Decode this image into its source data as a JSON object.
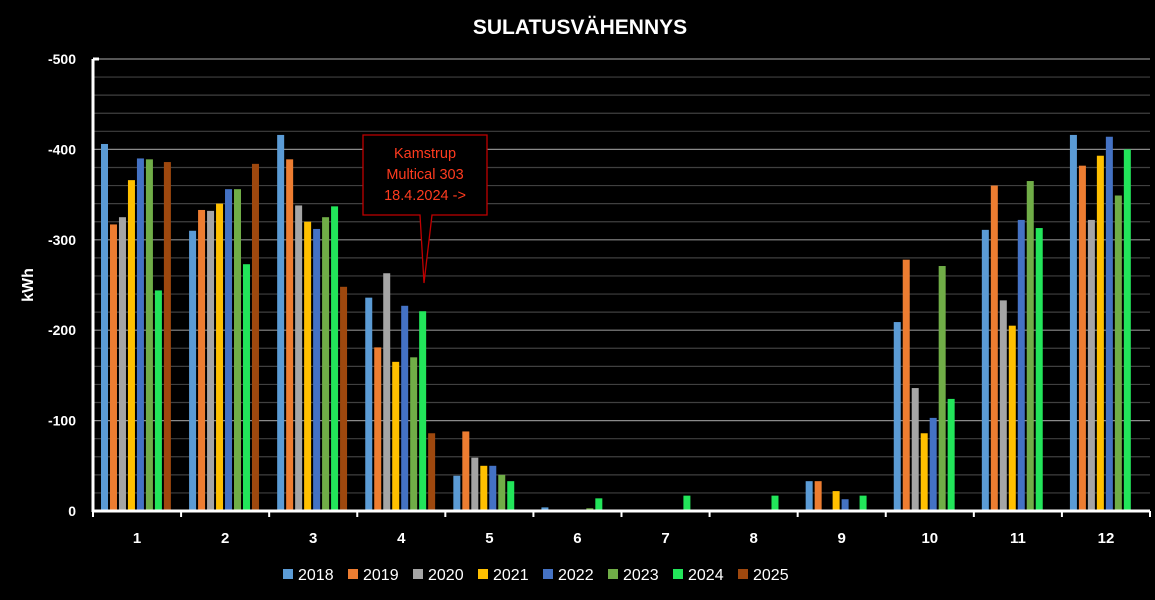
{
  "chart_data": {
    "type": "bar",
    "title": "SULATUSVÄHENNYS",
    "xlabel": "",
    "ylabel": "kWh",
    "ylim": [
      0,
      -500
    ],
    "yticks": [
      0,
      -100,
      -200,
      -300,
      -400,
      -500
    ],
    "ytick_labels": [
      "0",
      "-100",
      "-200",
      "-300",
      "-400",
      "-500"
    ],
    "minor_grid_step": 20,
    "grid": true,
    "legend_position": "bottom",
    "categories": [
      "1",
      "2",
      "3",
      "4",
      "5",
      "6",
      "7",
      "8",
      "9",
      "10",
      "11",
      "12"
    ],
    "series": [
      {
        "name": "2018",
        "color": "#5b9bd5",
        "values": [
          -406,
          -310,
          -416,
          -236,
          -39,
          -4,
          0,
          0,
          -33,
          -209,
          -311,
          -416
        ]
      },
      {
        "name": "2019",
        "color": "#ed7d31",
        "values": [
          -317,
          -333,
          -389,
          -181,
          -88,
          0,
          0,
          0,
          -33,
          -278,
          -360,
          -382
        ]
      },
      {
        "name": "2020",
        "color": "#a5a5a5",
        "values": [
          -325,
          -332,
          -338,
          -263,
          -59,
          0,
          0,
          0,
          0,
          -136,
          -233,
          -322
        ]
      },
      {
        "name": "2021",
        "color": "#ffc000",
        "values": [
          -366,
          -340,
          -320,
          -165,
          -50,
          0,
          0,
          0,
          -22,
          -86,
          -205,
          -393
        ]
      },
      {
        "name": "2022",
        "color": "#4472c4",
        "values": [
          -390,
          -356,
          -312,
          -227,
          -50,
          0,
          0,
          0,
          -13,
          -103,
          -322,
          -414
        ]
      },
      {
        "name": "2023",
        "color": "#70ad47",
        "values": [
          -389,
          -356,
          -325,
          -170,
          -40,
          -3,
          0,
          0,
          0,
          -271,
          -365,
          -349
        ]
      },
      {
        "name": "2024",
        "color": "#22e55a",
        "values": [
          -244,
          -273,
          -337,
          -221,
          -33,
          -14,
          -17,
          -17,
          -17,
          -124,
          -313,
          -400
        ]
      },
      {
        "name": "2025",
        "color": "#9e480e",
        "values": [
          -386,
          -384,
          -248,
          -86,
          0,
          null,
          null,
          null,
          null,
          null,
          null,
          null
        ]
      }
    ],
    "annotation": {
      "lines": [
        "Kamstrup",
        "Multical 303",
        "18.4.2024 ->"
      ],
      "points_to_category": "4",
      "text_color": "#ff3b1f",
      "border_color": "#c00000"
    }
  }
}
